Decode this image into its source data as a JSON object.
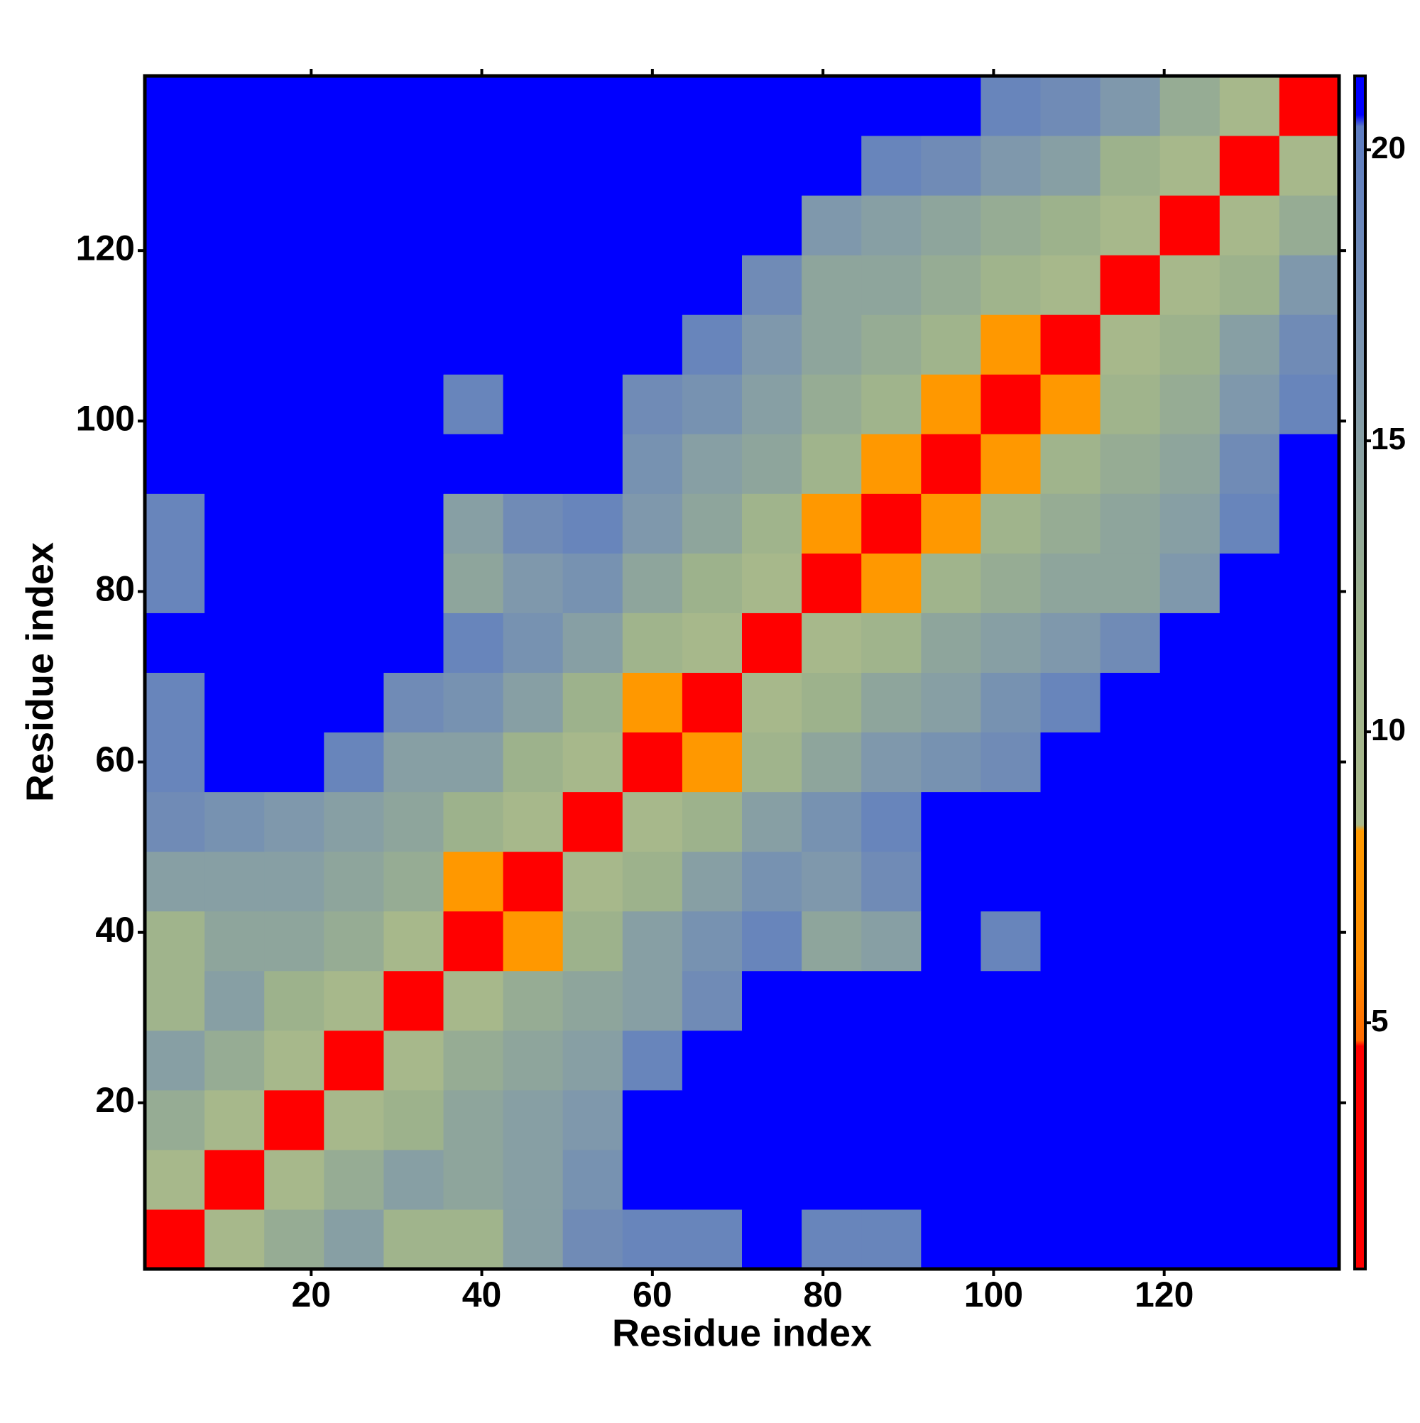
{
  "chart_data": {
    "type": "heatmap",
    "x_label": "Residue index",
    "y_label": "Residue index",
    "xlim": [
      0.5,
      140.5
    ],
    "ylim": [
      0.5,
      140.5
    ],
    "xticks": [
      20,
      40,
      60,
      80,
      100,
      120
    ],
    "yticks": [
      20,
      40,
      60,
      80,
      100,
      120
    ],
    "x_bins": [
      0.5,
      7.5,
      14.5,
      21.5,
      28.5,
      35.5,
      42.5,
      49.5,
      56.5,
      63.5,
      70.5,
      77.5,
      84.5,
      91.5,
      98.5,
      105.5,
      112.5,
      119.5,
      126.5,
      133.5,
      140.5
    ],
    "y_bins": [
      0.5,
      7.5,
      14.5,
      21.5,
      28.5,
      35.5,
      42.5,
      49.5,
      56.5,
      63.5,
      70.5,
      77.5,
      84.5,
      91.5,
      98.5,
      105.5,
      112.5,
      119.5,
      126.5,
      133.5,
      140.5
    ],
    "z": [
      [
        4,
        9,
        13,
        15,
        11,
        11,
        15,
        18,
        19,
        19,
        21,
        19,
        19,
        21,
        21,
        21,
        21,
        21,
        21,
        21
      ],
      [
        9,
        4,
        9,
        13,
        15,
        14,
        15,
        17,
        21,
        21,
        21,
        21,
        21,
        21,
        21,
        21,
        21,
        21,
        21,
        21
      ],
      [
        13,
        9,
        4,
        9,
        12,
        14,
        15,
        16,
        21,
        21,
        21,
        21,
        21,
        21,
        21,
        21,
        21,
        21,
        21,
        21
      ],
      [
        15,
        13,
        9,
        4,
        9,
        13,
        14,
        15,
        19,
        21,
        21,
        21,
        21,
        21,
        21,
        21,
        21,
        21,
        21,
        21
      ],
      [
        11,
        15,
        12,
        9,
        4,
        9,
        13,
        14,
        15,
        18,
        21,
        21,
        21,
        21,
        21,
        21,
        21,
        21,
        21,
        21
      ],
      [
        11,
        14,
        14,
        13,
        9,
        4,
        8,
        12,
        15,
        17,
        19,
        14,
        15,
        21,
        19,
        21,
        21,
        21,
        21,
        21
      ],
      [
        15,
        15,
        15,
        14,
        13,
        8,
        4,
        9,
        12,
        15,
        17,
        16,
        18,
        21,
        21,
        21,
        21,
        21,
        21,
        21
      ],
      [
        18,
        17,
        16,
        15,
        14,
        12,
        9,
        4,
        9,
        12,
        15,
        17,
        19,
        21,
        21,
        21,
        21,
        21,
        21,
        21
      ],
      [
        19,
        21,
        21,
        19,
        15,
        15,
        12,
        9,
        4,
        8,
        11,
        14,
        16,
        17,
        18,
        21,
        21,
        21,
        21,
        21
      ],
      [
        19,
        21,
        21,
        21,
        18,
        17,
        15,
        12,
        8,
        4,
        9,
        12,
        14,
        15,
        17,
        19,
        21,
        21,
        21,
        21
      ],
      [
        21,
        21,
        21,
        21,
        21,
        19,
        17,
        15,
        11,
        9,
        4,
        9,
        11,
        14,
        15,
        16,
        18,
        21,
        21,
        21
      ],
      [
        19,
        21,
        21,
        21,
        21,
        14,
        16,
        17,
        14,
        12,
        9,
        4,
        8,
        11,
        13,
        14,
        14,
        16,
        21,
        21
      ],
      [
        19,
        21,
        21,
        21,
        21,
        15,
        18,
        19,
        16,
        14,
        11,
        8,
        4,
        8,
        11,
        13,
        14,
        15,
        19,
        21
      ],
      [
        21,
        21,
        21,
        21,
        21,
        21,
        21,
        21,
        17,
        15,
        14,
        11,
        8,
        4,
        8,
        11,
        13,
        14,
        18,
        21
      ],
      [
        21,
        21,
        21,
        21,
        21,
        19,
        21,
        21,
        18,
        17,
        15,
        13,
        11,
        8,
        4,
        8,
        11,
        13,
        16,
        19
      ],
      [
        21,
        21,
        21,
        21,
        21,
        21,
        21,
        21,
        21,
        19,
        16,
        14,
        13,
        11,
        8,
        4,
        9,
        12,
        15,
        18
      ],
      [
        21,
        21,
        21,
        21,
        21,
        21,
        21,
        21,
        21,
        21,
        18,
        14,
        14,
        13,
        11,
        9,
        4,
        9,
        12,
        16
      ],
      [
        21,
        21,
        21,
        21,
        21,
        21,
        21,
        21,
        21,
        21,
        21,
        16,
        15,
        14,
        13,
        12,
        9,
        4,
        9,
        13
      ],
      [
        21,
        21,
        21,
        21,
        21,
        21,
        21,
        21,
        21,
        21,
        21,
        21,
        19,
        18,
        16,
        15,
        12,
        9,
        4,
        9
      ],
      [
        21,
        21,
        21,
        21,
        21,
        21,
        21,
        21,
        21,
        21,
        21,
        21,
        21,
        21,
        19,
        18,
        16,
        13,
        9,
        4
      ]
    ],
    "clim": [
      0.77,
      21.27
    ],
    "cticks": [
      5,
      10,
      15,
      20
    ],
    "colorscale": [
      [
        0.77,
        "#ff0000"
      ],
      [
        4.6,
        "#ff0000"
      ],
      [
        4.7,
        "#ff6a00"
      ],
      [
        6,
        "#ff8c00"
      ],
      [
        8.3,
        "#ff9a00"
      ],
      [
        8.4,
        "#a9b98b"
      ],
      [
        12,
        "#9db28c"
      ],
      [
        16,
        "#7f98ac"
      ],
      [
        20.4,
        "#5d7cc2"
      ],
      [
        20.6,
        "#0000ff"
      ],
      [
        21.27,
        "#0000ff"
      ]
    ]
  }
}
